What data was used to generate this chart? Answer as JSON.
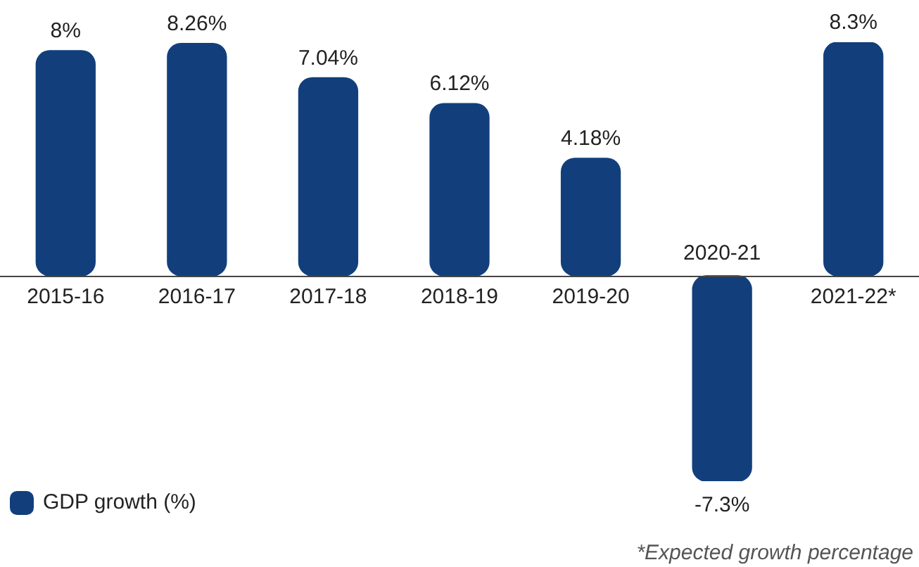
{
  "chart_data": {
    "type": "bar",
    "categories": [
      "2015-16",
      "2016-17",
      "2017-18",
      "2018-19",
      "2019-20",
      "2020-21",
      "2021-22*"
    ],
    "series": [
      {
        "name": "GDP growth (%)",
        "color": "#123f7c",
        "values": [
          8,
          8.26,
          7.04,
          6.12,
          4.18,
          -7.3,
          8.3
        ],
        "value_labels": [
          "8%",
          "8.26%",
          "7.04%",
          "6.12%",
          "4.18%",
          "-7.3%",
          "8.3%"
        ]
      }
    ],
    "legend": "bottom left",
    "annotations": [
      "*Expected growth percentage"
    ]
  }
}
